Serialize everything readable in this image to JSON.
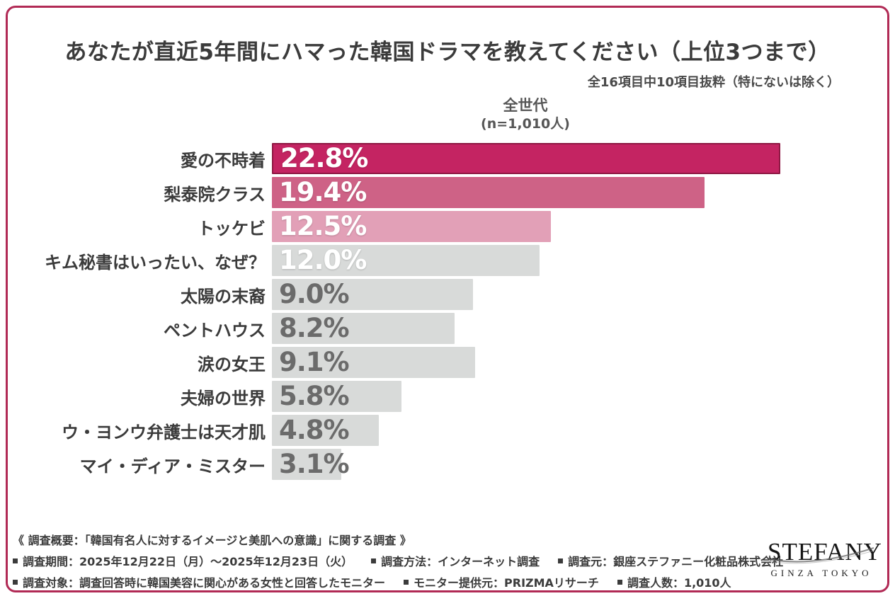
{
  "title": "あなたが直近5年間にハマった韓国ドラマを教えてください（上位3つまで）",
  "subtitle": "全16項目中10項目抜粋（特にないは除く）",
  "column_header": {
    "group": "全世代",
    "sample": "(n=1,010人)"
  },
  "colors": {
    "frame_border": "#b12a55",
    "rank1_bar": "#c42462",
    "rank1_border": "#8e1843",
    "rank2_bar": "#ce6286",
    "rank3_bar": "#e2a0b7",
    "gray_bar": "#d8dad9",
    "value_white": "#ffffff",
    "value_gray": "#6b6b6b",
    "text_dark": "#3b3b3b"
  },
  "chart_data": {
    "type": "bar",
    "orientation": "horizontal",
    "title": "あなたが直近5年間にハマった韓国ドラマを教えてください（上位3つまで）",
    "series_name": "全世代 (n=1,010人)",
    "value_suffix": "%",
    "xlim": [
      0,
      23
    ],
    "grid": false,
    "legend": "none",
    "categories": [
      "愛の不時着",
      "梨泰院クラス",
      "トッケビ",
      "キム秘書はいったい、なぜ？",
      "太陽の末裔",
      "ペントハウス",
      "涙の女王",
      "夫婦の世界",
      "ウ・ヨンウ弁護士は天才肌",
      "マイ・ディア・ミスター"
    ],
    "values": [
      22.8,
      19.4,
      12.5,
      12.0,
      9.0,
      8.2,
      9.1,
      5.8,
      4.8,
      3.1
    ],
    "items": [
      {
        "label": "愛の不時着",
        "value": 22.8,
        "display": "22.8%",
        "bar_color": "#c42462",
        "bar_border": "#8e1843",
        "value_color": "#ffffff"
      },
      {
        "label": "梨泰院クラス",
        "value": 19.4,
        "display": "19.4%",
        "bar_color": "#ce6286",
        "bar_border": "",
        "value_color": "#ffffff"
      },
      {
        "label": "トッケビ",
        "value": 12.5,
        "display": "12.5%",
        "bar_color": "#e2a0b7",
        "bar_border": "",
        "value_color": "#ffffff"
      },
      {
        "label": "キム秘書はいったい、なぜ？",
        "value": 12.0,
        "display": "12.0%",
        "bar_color": "#d8dad9",
        "bar_border": "",
        "value_color": "#ffffff"
      },
      {
        "label": "太陽の末裔",
        "value": 9.0,
        "display": "9.0%",
        "bar_color": "#d8dad9",
        "bar_border": "",
        "value_color": "#6b6b6b"
      },
      {
        "label": "ペントハウス",
        "value": 8.2,
        "display": "8.2%",
        "bar_color": "#d8dad9",
        "bar_border": "",
        "value_color": "#6b6b6b"
      },
      {
        "label": "涙の女王",
        "value": 9.1,
        "display": "9.1%",
        "bar_color": "#d8dad9",
        "bar_border": "",
        "value_color": "#6b6b6b"
      },
      {
        "label": "夫婦の世界",
        "value": 5.8,
        "display": "5.8%",
        "bar_color": "#d8dad9",
        "bar_border": "",
        "value_color": "#6b6b6b"
      },
      {
        "label": "ウ・ヨンウ弁護士は天才肌",
        "value": 4.8,
        "display": "4.8%",
        "bar_color": "#d8dad9",
        "bar_border": "",
        "value_color": "#6b6b6b"
      },
      {
        "label": "マイ・ディア・ミスター",
        "value": 3.1,
        "display": "3.1%",
        "bar_color": "#d8dad9",
        "bar_border": "",
        "value_color": "#6b6b6b"
      }
    ]
  },
  "footer": {
    "overview": "《 調査概要：「韓国有名人に対するイメージと美肌への意識」に関する調査 》",
    "line1_items": [
      "調査期間：2025年12月22日（月）～2025年12月23日（火）",
      "調査方法：インターネット調査",
      "調査元：銀座ステファニー化粧品株式会社"
    ],
    "line2_items": [
      "調査対象：調査回答時に韓国美容に関心がある女性と回答したモニター",
      "モニター提供元：PRIZMAリサーチ",
      "調査人数：1,010人"
    ]
  },
  "logo": {
    "brand": "STEFANY",
    "tagline": "GINZA TOKYO"
  }
}
